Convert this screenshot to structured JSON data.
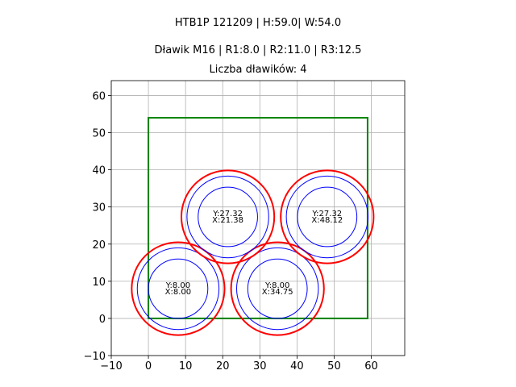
{
  "chart_data": {
    "type": "scatter",
    "title_line1": "HTB1P 121209 | H:59.0| W:54.0",
    "title_line2": "Dławik M16 | R1:8.0 | R2:11.0 | R3:12.5",
    "title_line3": "Liczba dławików: 4",
    "xlabel": "",
    "ylabel": "",
    "xlim": [
      -10,
      69
    ],
    "ylim": [
      -10,
      64
    ],
    "x_ticks": [
      -10,
      0,
      10,
      20,
      30,
      40,
      50,
      60
    ],
    "y_ticks": [
      -10,
      0,
      10,
      20,
      30,
      40,
      50,
      60
    ],
    "x_tick_labels": [
      "−10",
      "0",
      "10",
      "20",
      "30",
      "40",
      "50",
      "60"
    ],
    "y_tick_labels": [
      "−10",
      "0",
      "10",
      "20",
      "30",
      "40",
      "50",
      "60"
    ],
    "grid": true,
    "box": {
      "x0": 0,
      "y0": 0,
      "x1": 59,
      "y1": 54,
      "color": "#008000"
    },
    "radii": {
      "r1": 8.0,
      "r2": 11.0,
      "r3": 12.5
    },
    "inner_color": "#0000ff",
    "outer_color": "#ff0000",
    "glands": [
      {
        "x": 8.0,
        "y": 8.0,
        "label_y": "Y:8.00",
        "label_x": "X:8.00"
      },
      {
        "x": 34.75,
        "y": 8.0,
        "label_y": "Y:8.00",
        "label_x": "X:34.75"
      },
      {
        "x": 21.38,
        "y": 27.32,
        "label_y": "Y:27.32",
        "label_x": "X:21.38"
      },
      {
        "x": 48.12,
        "y": 27.32,
        "label_y": "Y:27.32",
        "label_x": "X:48.12"
      }
    ]
  }
}
